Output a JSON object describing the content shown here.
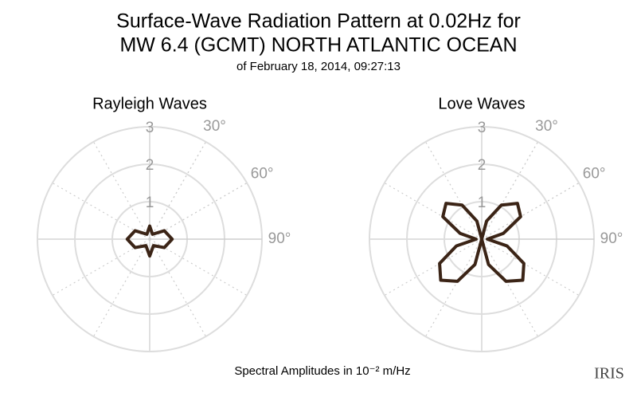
{
  "title": [
    "Surface-Wave Radiation Pattern at 0.02Hz for",
    "MW 6.4 (GCMT) NORTH ATLANTIC OCEAN"
  ],
  "subtitle": "of February 18, 2014, 09:27:13",
  "footnote": "Spectral Amplitudes in 10⁻² m/Hz",
  "logo": "IRIS",
  "chart_data": [
    {
      "type": "polar",
      "title": "Rayleigh Waves",
      "color": "#3b2416",
      "rlim": [
        0,
        3
      ],
      "rticks": [
        1,
        2,
        3
      ],
      "thetaticks": [
        {
          "value": 30,
          "label": "30°"
        },
        {
          "value": 60,
          "label": "60°"
        },
        {
          "value": 90,
          "label": "90°"
        }
      ],
      "x": [
        0,
        30,
        60,
        90,
        120,
        150,
        180,
        210,
        240,
        270,
        300,
        330
      ],
      "values": [
        0.35,
        0.15,
        0.45,
        0.6,
        0.45,
        0.2,
        0.45,
        0.2,
        0.45,
        0.6,
        0.45,
        0.15
      ]
    },
    {
      "type": "polar",
      "title": "Love Waves",
      "color": "#3b2416",
      "rlim": [
        0,
        3
      ],
      "rticks": [
        1,
        2,
        3
      ],
      "thetaticks": [
        {
          "value": 30,
          "label": "30°"
        },
        {
          "value": 60,
          "label": "60°"
        },
        {
          "value": 90,
          "label": "90°"
        }
      ],
      "x": [
        0,
        15,
        30,
        45,
        60,
        75,
        90,
        105,
        120,
        135,
        150,
        165,
        180,
        195,
        210,
        225,
        240,
        255,
        270,
        285,
        300,
        315,
        330,
        345
      ],
      "values": [
        0,
        0.5,
        1.05,
        1.35,
        1.2,
        0.6,
        0.15,
        0.7,
        1.3,
        1.55,
        1.3,
        0.7,
        0,
        0.7,
        1.3,
        1.55,
        1.3,
        0.7,
        0.15,
        0.6,
        1.2,
        1.35,
        1.05,
        0.5
      ]
    }
  ]
}
